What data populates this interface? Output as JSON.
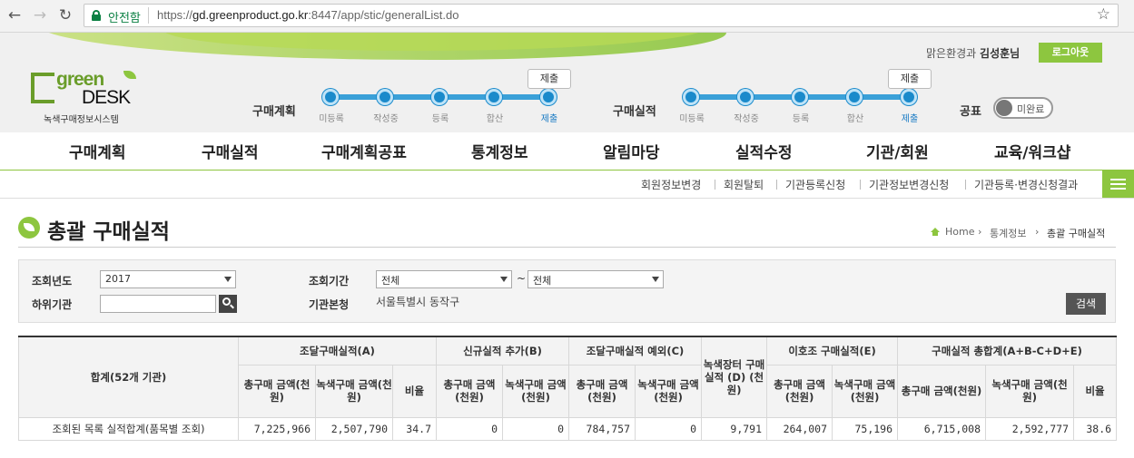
{
  "browser": {
    "secure_label": "안전함",
    "url_prefix": "https://",
    "url_host": "gd.greenproduct.go.kr",
    "url_rest": ":8447/app/stic/generalList.do",
    "back_icon": "back-arrow-icon",
    "forward_icon": "forward-arrow-icon",
    "reload_icon": "reload-icon",
    "star_icon": "bookmark-star-icon"
  },
  "header": {
    "logo_green": "green",
    "logo_desk": "DESK",
    "logo_sub": "녹색구매정보시스템",
    "user_org": "맑은환경과",
    "user_name": "김성훈님",
    "logout_label": "로그아웃",
    "plan": {
      "label": "구매계획",
      "steps": [
        "미등록",
        "작성중",
        "등록",
        "합산",
        "제출"
      ],
      "current": "제출"
    },
    "result": {
      "label": "구매실적",
      "steps": [
        "미등록",
        "작성중",
        "등록",
        "합산",
        "제출"
      ],
      "current": "제출"
    },
    "gongpyo_label": "공표",
    "toggle_label": "미완료",
    "accent": "#8dc63f"
  },
  "menu": [
    "구매계획",
    "구매실적",
    "구매계획공표",
    "통계정보",
    "알림마당",
    "실적수정",
    "기관/회원",
    "교육/워크샵"
  ],
  "submenu": [
    "회원정보변경",
    "회원탈퇴",
    "기관등록신청",
    "기관정보변경신청",
    "기관등록·변경신청결과"
  ],
  "page": {
    "title": "총괄 구매실적",
    "breadcrumb": [
      "Home",
      "통계정보",
      "총괄 구매실적"
    ]
  },
  "search": {
    "year_label": "조회년도",
    "year_value": "2017",
    "period_label": "조회기간",
    "period_from": "전체",
    "period_to": "전체",
    "sub_org_label": "하위기관",
    "sub_org_value": "",
    "hq_label": "기관본청",
    "hq_value": "서울특별시 동작구",
    "search_button": "검색"
  },
  "table": {
    "corner": "합계(52개 기관)",
    "groups": [
      "조달구매실적(A)",
      "신규실적 추가(B)",
      "조달구매실적 예외(C)",
      "녹색장터 구매실적 (D) (천원)",
      "이호조 구매실적(E)",
      "구매실적 총합계(A+B-C+D+E)"
    ],
    "sub_total": "총구매 금액(천원)",
    "sub_green": "녹색구매 금액(천원)",
    "sub_ratio": "비율",
    "row_label": "조회된 목록 실적합계(품목별 조회)",
    "values": [
      "7,225,966",
      "2,507,790",
      "34.7",
      "0",
      "0",
      "784,757",
      "0",
      "9,791",
      "264,007",
      "75,196",
      "6,715,008",
      "2,592,777",
      "38.6"
    ]
  }
}
